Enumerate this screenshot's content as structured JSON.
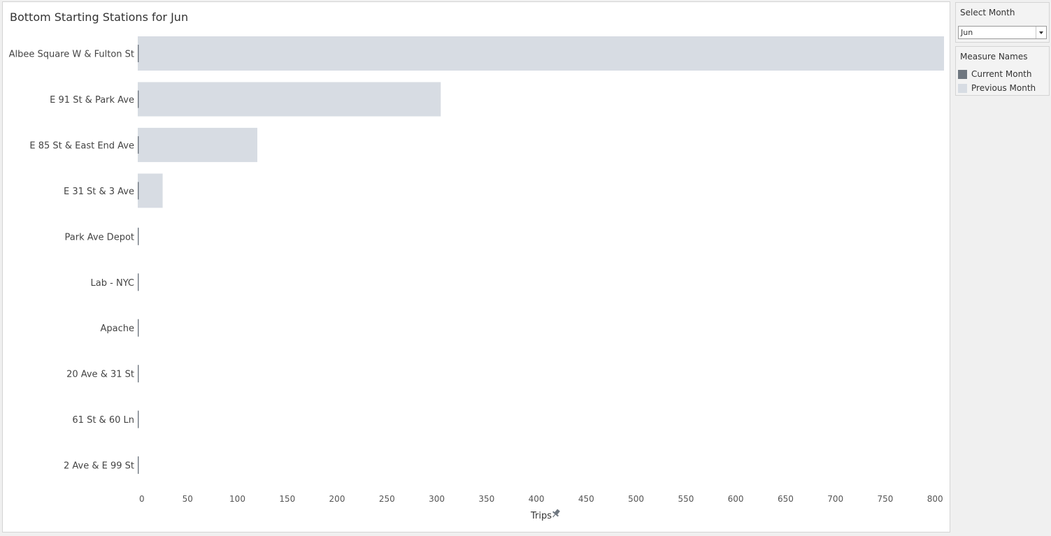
{
  "chart_data": {
    "type": "bar",
    "title": "Bottom Starting Stations for Jun",
    "categories": [
      "Albee Square W & Fulton St",
      "E 91 St & Park Ave",
      "E 85 St & East End Ave",
      "E 31 St & 3 Ave",
      "Park Ave Depot",
      "Lab - NYC",
      "Apache",
      "20 Ave & 31 St",
      "61 St & 60 Ln",
      "2 Ave & E 99 St"
    ],
    "series": [
      {
        "name": "Current Month",
        "color": "#6f7780",
        "values": [
          1,
          1,
          1,
          1,
          1,
          1,
          1,
          1,
          1,
          1
        ]
      },
      {
        "name": "Previous Month",
        "color": "#d7dce3",
        "values": [
          809,
          304,
          120,
          25,
          0,
          0,
          0,
          0,
          0,
          0
        ]
      }
    ],
    "xlabel": "Trips",
    "ylabel": "",
    "xlim": [
      0,
      809
    ],
    "ticks": [
      0,
      50,
      100,
      150,
      200,
      250,
      300,
      350,
      400,
      450,
      500,
      550,
      600,
      650,
      700,
      750,
      800
    ],
    "grid": false,
    "orientation": "horizontal",
    "legend_position": "right"
  },
  "filter": {
    "title": "Select Month",
    "value": "Jun"
  },
  "legend": {
    "title": "Measure Names",
    "items": [
      {
        "label": "Current Month",
        "color": "#6f7780"
      },
      {
        "label": "Previous Month",
        "color": "#d7dce3"
      }
    ]
  },
  "icons": {
    "axis_pin": "pin-icon"
  }
}
